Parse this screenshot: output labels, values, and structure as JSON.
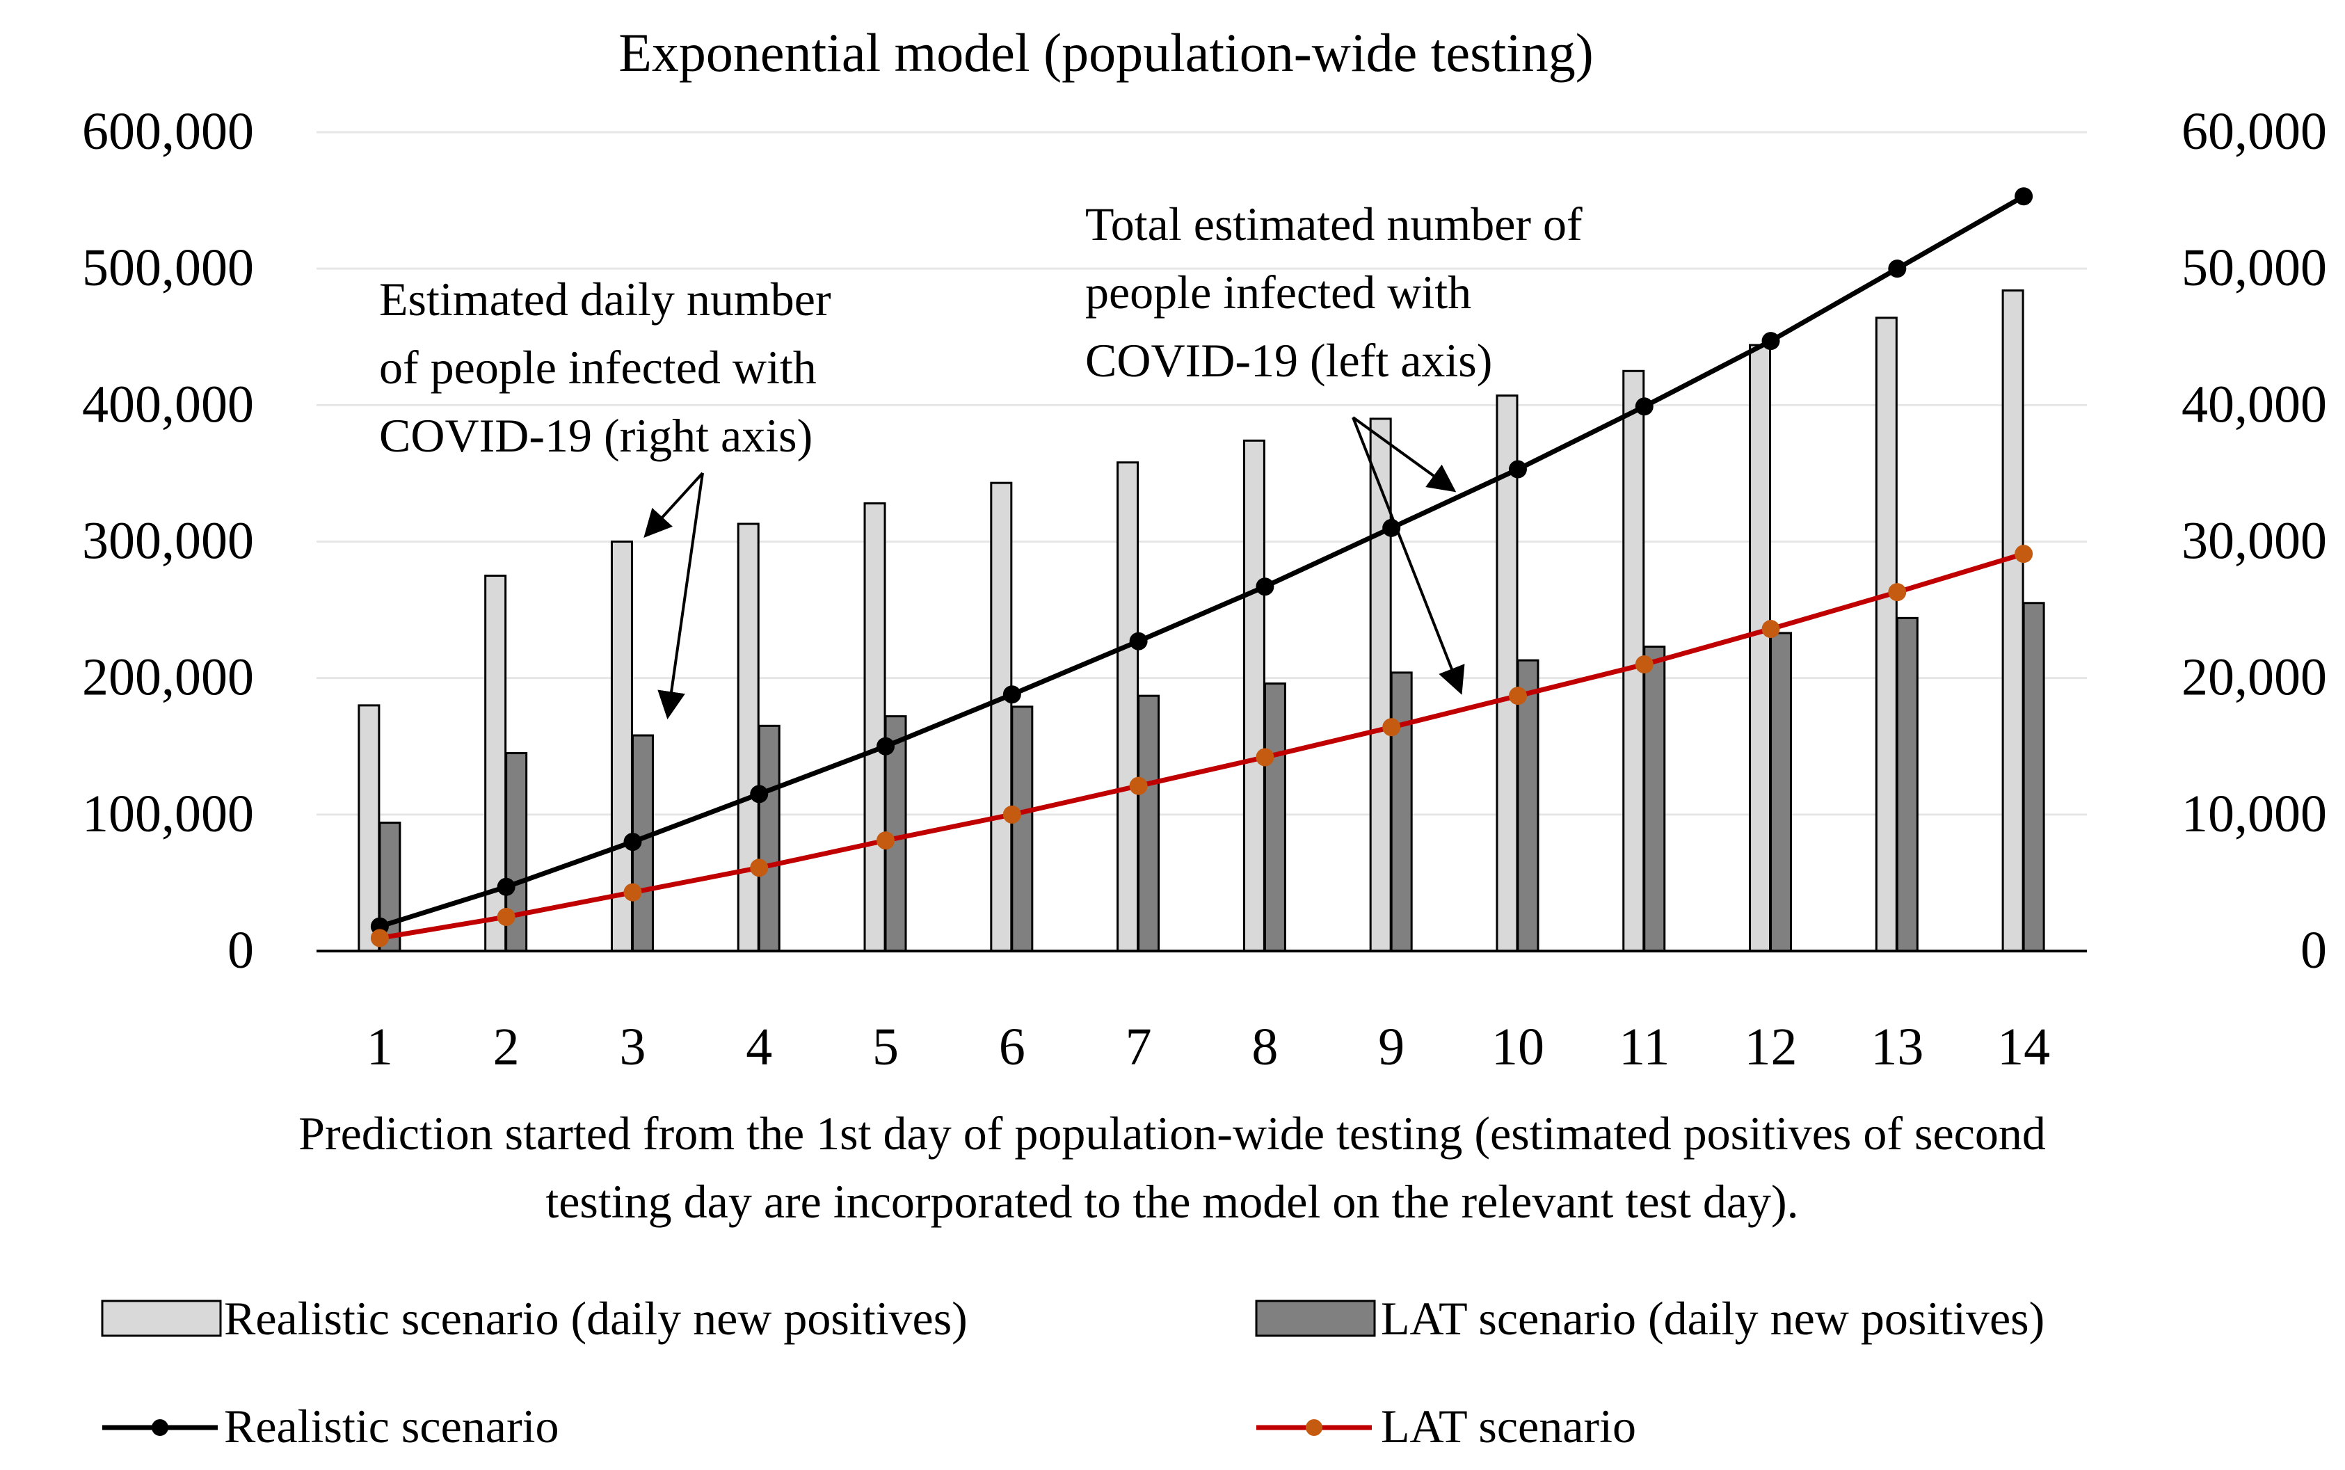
{
  "chart_data": {
    "type": "bar",
    "title": "Exponential model (population-wide testing)",
    "xlabel_lines": [
      "Prediction started from the 1st day of population-wide testing (estimated positives of second",
      "testing day are incorporated to the model on the relevant test day)."
    ],
    "categories": [
      "1",
      "2",
      "3",
      "4",
      "5",
      "6",
      "7",
      "8",
      "9",
      "10",
      "11",
      "12",
      "13",
      "14"
    ],
    "left_axis": {
      "range": [
        0,
        600000
      ],
      "ticks": [
        0,
        100000,
        200000,
        300000,
        400000,
        500000,
        600000
      ],
      "tick_labels": [
        "0",
        "100,000",
        "200,000",
        "300,000",
        "400,000",
        "500,000",
        "600,000"
      ]
    },
    "right_axis": {
      "range": [
        0,
        60000
      ],
      "ticks": [
        0,
        10000,
        20000,
        30000,
        40000,
        50000,
        60000
      ],
      "tick_labels": [
        "0",
        "10,000",
        "20,000",
        "30,000",
        "40,000",
        "50,000",
        "60,000"
      ]
    },
    "grid": true,
    "series": [
      {
        "name": "Realistic scenario (daily new positives)",
        "kind": "bar",
        "axis": "right",
        "color": "#d9d9d9",
        "values": [
          18000,
          27500,
          30000,
          31300,
          32800,
          34300,
          35800,
          37400,
          39000,
          40700,
          42500,
          44400,
          46400,
          48400
        ]
      },
      {
        "name": "LAT scenario (daily new positives)",
        "kind": "bar",
        "axis": "right",
        "color": "#808080",
        "values": [
          9400,
          14500,
          15800,
          16500,
          17200,
          17900,
          18700,
          19600,
          20400,
          21300,
          22300,
          23300,
          24400,
          25500
        ]
      },
      {
        "name": "Realistic scenario",
        "kind": "line",
        "axis": "left",
        "color": "#000000",
        "values": [
          18000,
          47000,
          80000,
          115000,
          150000,
          188000,
          227000,
          267000,
          310000,
          353000,
          399000,
          447000,
          500000,
          553000
        ]
      },
      {
        "name": "LAT scenario",
        "kind": "line",
        "axis": "left",
        "color": "#c00000",
        "marker_color": "#c55a11",
        "values": [
          9500,
          25000,
          43000,
          61000,
          81000,
          100000,
          121000,
          142000,
          164000,
          187000,
          210000,
          236000,
          263000,
          291000
        ]
      }
    ],
    "annotations": [
      {
        "lines": [
          "Estimated daily number",
          "of people infected with",
          "COVID-19 (right axis)"
        ]
      },
      {
        "lines": [
          "Total estimated number of",
          "people infected with",
          "COVID-19 (left axis)"
        ]
      }
    ],
    "legend": {
      "placement": "bottom",
      "items": [
        "Realistic scenario (daily new positives)",
        "LAT scenario (daily new positives)",
        "Realistic scenario",
        "LAT scenario"
      ]
    }
  }
}
